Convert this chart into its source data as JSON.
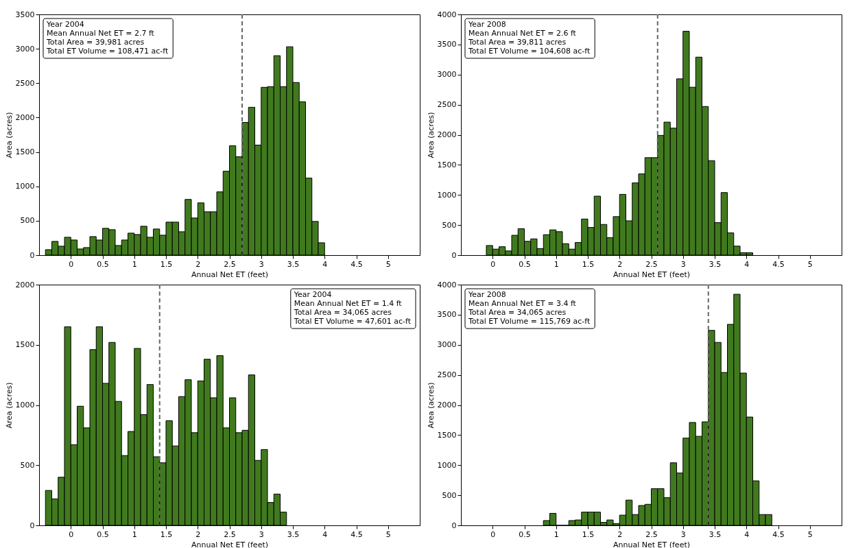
{
  "chart_data": [
    {
      "type": "histogram",
      "xlabel": "Annual Net ET (feet)",
      "ylabel": "Area (acres)",
      "color": "#417a1e",
      "xlim": [
        -0.5,
        5.5
      ],
      "xticks": [
        0,
        0.5,
        1,
        1.5,
        2,
        2.5,
        3,
        3.5,
        4,
        4.5,
        5
      ],
      "ylim": [
        0,
        3500
      ],
      "yticks": [
        0,
        500,
        1000,
        1500,
        2000,
        2500,
        3000,
        3500
      ],
      "grid": false,
      "bins": [
        -0.4,
        -0.3,
        -0.2,
        -0.1,
        0,
        0.1,
        0.2,
        0.3,
        0.4,
        0.5,
        0.6,
        0.7,
        0.8,
        0.9,
        1,
        1.1,
        1.2,
        1.3,
        1.4,
        1.5,
        1.6,
        1.7,
        1.8,
        1.9,
        2,
        2.1,
        2.2,
        2.3,
        2.4,
        2.5,
        2.6,
        2.7,
        2.8,
        2.9,
        3,
        3.1,
        3.2,
        3.3,
        3.4,
        3.5,
        3.6,
        3.7,
        3.8,
        3.9,
        4
      ],
      "values": [
        80,
        200,
        130,
        260,
        220,
        90,
        110,
        270,
        220,
        390,
        370,
        140,
        220,
        320,
        300,
        420,
        260,
        380,
        290,
        480,
        480,
        340,
        810,
        540,
        760,
        630,
        630,
        920,
        1220,
        1590,
        1430,
        1930,
        2150,
        1600,
        2440,
        2450,
        2900,
        2450,
        3030,
        2510,
        2230,
        1120,
        490,
        180
      ],
      "ref_lines": [
        {
          "axis": "x",
          "value": 2.7,
          "color": "#666666",
          "line_style": "dashed"
        }
      ],
      "annotations": [
        "Year 2004",
        "Mean Annual Net ET = 2.7 ft",
        "Total Area = 39,981 acres",
        "Total ET Volume = 108,471 ac-ft"
      ]
    },
    {
      "type": "histogram",
      "xlabel": "Annual Net ET (feet)",
      "ylabel": "Area (acres)",
      "color": "#417a1e",
      "xlim": [
        -0.5,
        5.5
      ],
      "xticks": [
        0,
        0.5,
        1,
        1.5,
        2,
        2.5,
        3,
        3.5,
        4,
        4.5,
        5
      ],
      "ylim": [
        0,
        4000
      ],
      "yticks": [
        0,
        500,
        1000,
        1500,
        2000,
        2500,
        3000,
        3500,
        4000
      ],
      "grid": false,
      "bins": [
        -0.1,
        0,
        0.1,
        0.2,
        0.3,
        0.4,
        0.5,
        0.6,
        0.7,
        0.8,
        0.9,
        1,
        1.1,
        1.2,
        1.3,
        1.4,
        1.5,
        1.6,
        1.7,
        1.8,
        1.9,
        2,
        2.1,
        2.2,
        2.3,
        2.4,
        2.5,
        2.6,
        2.7,
        2.8,
        2.9,
        3,
        3.1,
        3.2,
        3.3,
        3.4,
        3.5,
        3.6,
        3.7,
        3.8,
        3.9,
        4,
        4.1
      ],
      "values": [
        160,
        100,
        140,
        70,
        330,
        440,
        230,
        270,
        110,
        340,
        420,
        390,
        190,
        100,
        210,
        600,
        460,
        980,
        510,
        290,
        640,
        1010,
        570,
        1200,
        1350,
        1620,
        1620,
        1990,
        2210,
        2110,
        2930,
        3720,
        2790,
        3290,
        2470,
        1570,
        540,
        1040,
        370,
        150,
        40,
        40
      ],
      "ref_lines": [
        {
          "axis": "x",
          "value": 2.6,
          "color": "#666666",
          "line_style": "dashed"
        }
      ],
      "annotations": [
        "Year 2008",
        "Mean Annual Net ET = 2.6 ft",
        "Total Area = 39,811 acres",
        "Total ET Volume = 104,608 ac-ft"
      ]
    },
    {
      "type": "histogram",
      "xlabel": "Annual Net ET (feet)",
      "ylabel": "Area (acres)",
      "color": "#417a1e",
      "xlim": [
        -0.5,
        5.5
      ],
      "xticks": [
        0,
        0.5,
        1,
        1.5,
        2,
        2.5,
        3,
        3.5,
        4,
        4.5,
        5
      ],
      "ylim": [
        0,
        2000
      ],
      "yticks": [
        0,
        500,
        1000,
        1500,
        2000
      ],
      "grid": false,
      "bins": [
        -0.4,
        -0.3,
        -0.2,
        -0.1,
        0,
        0.1,
        0.2,
        0.3,
        0.4,
        0.5,
        0.6,
        0.7,
        0.8,
        0.9,
        1,
        1.1,
        1.2,
        1.3,
        1.4,
        1.5,
        1.6,
        1.7,
        1.8,
        1.9,
        2,
        2.1,
        2.2,
        2.3,
        2.4,
        2.5,
        2.6,
        2.7,
        2.8,
        2.9,
        3,
        3.1,
        3.2,
        3.3,
        3.4
      ],
      "values": [
        290,
        220,
        400,
        1650,
        670,
        990,
        810,
        1460,
        1650,
        1180,
        1520,
        1030,
        580,
        780,
        1470,
        920,
        1170,
        570,
        520,
        870,
        660,
        1070,
        1210,
        770,
        1200,
        1380,
        1060,
        1410,
        810,
        1060,
        770,
        790,
        1250,
        540,
        630,
        190,
        260,
        110
      ],
      "ref_lines": [
        {
          "axis": "x",
          "value": 1.4,
          "color": "#666666",
          "line_style": "dashed"
        }
      ],
      "annotations": [
        "Year 2004",
        "Mean Annual Net ET = 1.4 ft",
        "Total Area = 34,065 acres",
        "Total ET Volume = 47,601 ac-ft"
      ]
    },
    {
      "type": "histogram",
      "xlabel": "Annual Net ET (feet)",
      "ylabel": "Area (acres)",
      "color": "#417a1e",
      "xlim": [
        -0.5,
        5.5
      ],
      "xticks": [
        0,
        0.5,
        1,
        1.5,
        2,
        2.5,
        3,
        3.5,
        4,
        4.5,
        5
      ],
      "ylim": [
        0,
        4000
      ],
      "yticks": [
        0,
        500,
        1000,
        1500,
        2000,
        2500,
        3000,
        3500,
        4000
      ],
      "grid": false,
      "bins": [
        0.8,
        0.9,
        1,
        1.1,
        1.2,
        1.3,
        1.4,
        1.5,
        1.6,
        1.7,
        1.8,
        1.9,
        2,
        2.1,
        2.2,
        2.3,
        2.4,
        2.5,
        2.6,
        2.7,
        2.8,
        2.9,
        3,
        3.1,
        3.2,
        3.3,
        3.4,
        3.5,
        3.6,
        3.7,
        3.8,
        3.9,
        4,
        4.1,
        4.2,
        4.3,
        4.4
      ],
      "values": [
        80,
        200,
        0,
        0,
        80,
        90,
        220,
        220,
        220,
        50,
        90,
        30,
        170,
        420,
        180,
        330,
        350,
        610,
        610,
        460,
        1040,
        870,
        1450,
        1710,
        1480,
        1720,
        3240,
        3040,
        2540,
        3340,
        3840,
        2530,
        1800,
        740,
        180,
        180
      ],
      "ref_lines": [
        {
          "axis": "x",
          "value": 3.4,
          "color": "#666666",
          "line_style": "dashed"
        }
      ],
      "annotations": [
        "Year 2008",
        "Mean Annual Net ET = 3.4 ft",
        "Total Area = 34,065 acres",
        "Total ET Volume = 115,769 ac-ft"
      ]
    }
  ]
}
